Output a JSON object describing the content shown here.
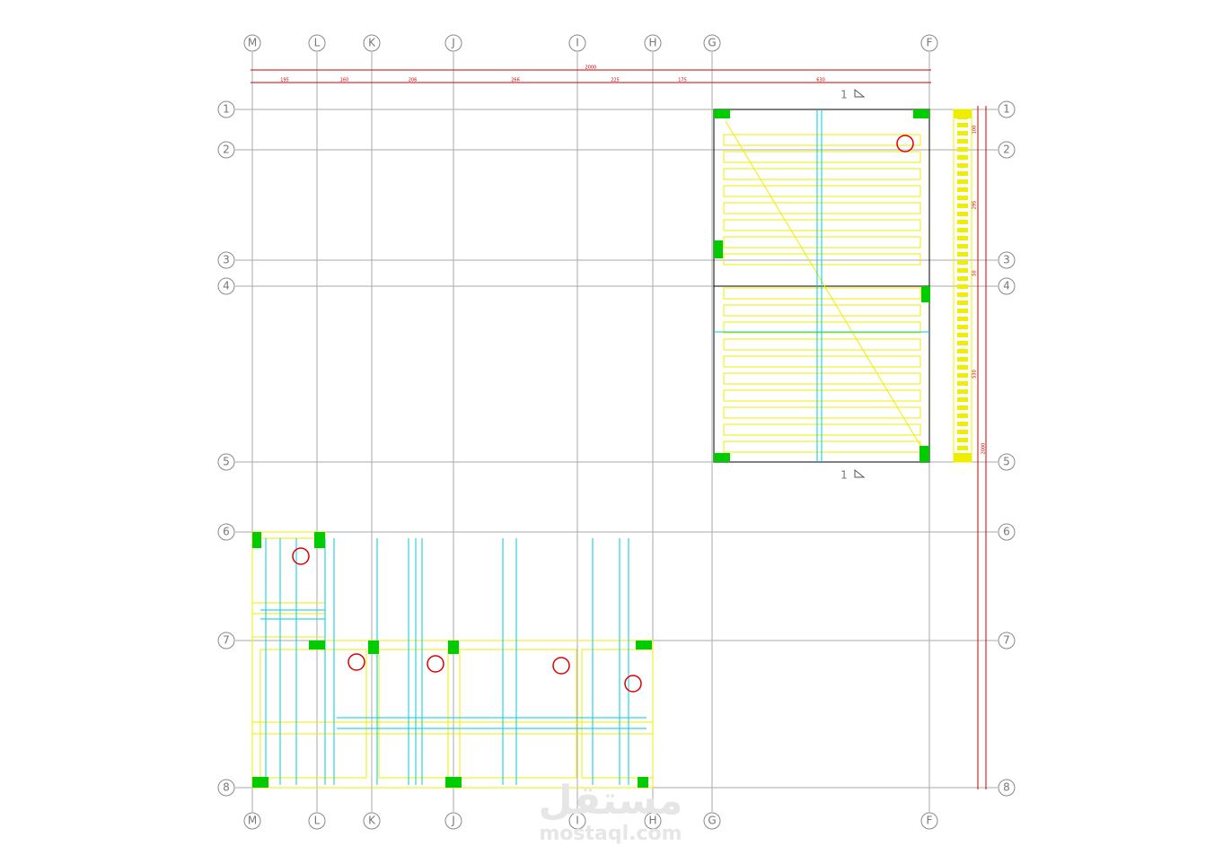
{
  "grid": {
    "columns": [
      "M",
      "L",
      "K",
      "J",
      "I",
      "H",
      "G",
      "F"
    ],
    "rows": [
      "1",
      "2",
      "3",
      "4",
      "5",
      "6",
      "7",
      "8"
    ]
  },
  "dimensions": {
    "overall": "2000",
    "spans": [
      "195",
      "160",
      "206",
      "266",
      "225",
      "175",
      "630"
    ],
    "right": [
      "100",
      "295",
      "50",
      "530",
      "2000"
    ]
  },
  "section_marks": [
    "1",
    "1"
  ],
  "watermark": {
    "arabic": "مستقل",
    "latin": "mostaql.com"
  }
}
